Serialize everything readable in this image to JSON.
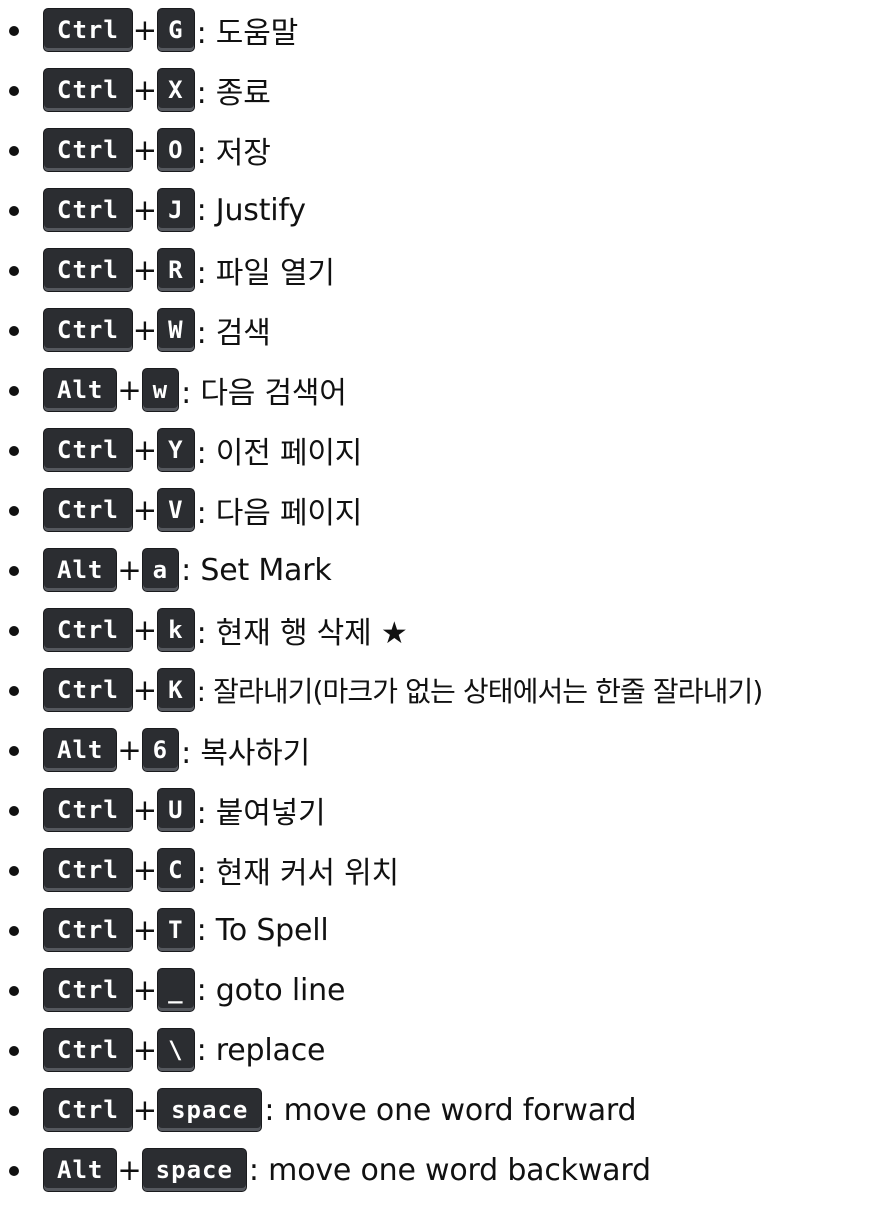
{
  "items": [
    {
      "mod": "Ctrl",
      "key": "G",
      "desc": ": 도움말"
    },
    {
      "mod": "Ctrl",
      "key": "X",
      "desc": ": 종료"
    },
    {
      "mod": "Ctrl",
      "key": "O",
      "desc": ": 저장"
    },
    {
      "mod": "Ctrl",
      "key": "J",
      "desc": ": Justify"
    },
    {
      "mod": "Ctrl",
      "key": "R",
      "desc": ": 파일 열기"
    },
    {
      "mod": "Ctrl",
      "key": "W",
      "desc": ": 검색"
    },
    {
      "mod": "Alt",
      "key": "w",
      "desc": ": 다음 검색어"
    },
    {
      "mod": "Ctrl",
      "key": "Y",
      "desc": ": 이전 페이지"
    },
    {
      "mod": "Ctrl",
      "key": "V",
      "desc": ": 다음 페이지"
    },
    {
      "mod": "Alt",
      "key": "a",
      "desc": ": Set Mark"
    },
    {
      "mod": "Ctrl",
      "key": "k",
      "desc": ": 현재 행 삭제 ★"
    },
    {
      "mod": "Ctrl",
      "key": "K",
      "desc": ": 잘라내기(마크가 없는 상태에서는 한줄 잘라내기)"
    },
    {
      "mod": "Alt",
      "key": "6",
      "desc": ": 복사하기"
    },
    {
      "mod": "Ctrl",
      "key": "U",
      "desc": ": 붙여넣기"
    },
    {
      "mod": "Ctrl",
      "key": "C",
      "desc": ": 현재 커서 위치"
    },
    {
      "mod": "Ctrl",
      "key": "T",
      "desc": ": To Spell"
    },
    {
      "mod": "Ctrl",
      "key": "_",
      "desc": ": goto line"
    },
    {
      "mod": "Ctrl",
      "key": "\\",
      "desc": ": replace"
    },
    {
      "mod": "Ctrl",
      "key": "space",
      "desc": ": move one word forward"
    },
    {
      "mod": "Alt",
      "key": "space",
      "desc": ": move one word backward"
    }
  ],
  "plus_sign": "+"
}
